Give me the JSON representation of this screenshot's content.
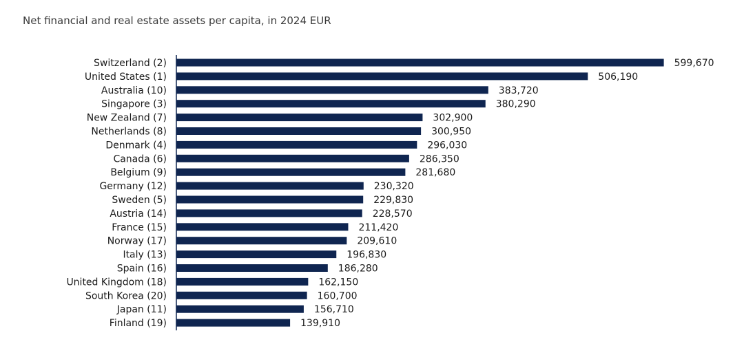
{
  "subtitle": "Net financial and real estate assets per capita, in 2024 EUR",
  "colors": {
    "bar": "#0f2550",
    "axis": "#0f2550",
    "text": "#1a1a1a"
  },
  "chart_data": {
    "type": "bar",
    "orientation": "horizontal",
    "title": "",
    "subtitle": "Net financial and real estate assets per capita, in 2024 EUR",
    "xlabel": "",
    "ylabel": "",
    "xlim": [
      0,
      600000
    ],
    "grid": false,
    "legend": "none",
    "categories": [
      "Switzerland (2)",
      "United States (1)",
      "Australia (10)",
      "Singapore (3)",
      "New Zealand (7)",
      "Netherlands (8)",
      "Denmark (4)",
      "Canada (6)",
      "Belgium (9)",
      "Germany (12)",
      "Sweden (5)",
      "Austria (14)",
      "France (15)",
      "Norway (17)",
      "Italy (13)",
      "Spain (16)",
      "United Kingdom (18)",
      "South Korea (20)",
      "Japan (11)",
      "Finland (19)"
    ],
    "values": [
      599670,
      506190,
      383720,
      380290,
      302900,
      300950,
      296030,
      286350,
      281680,
      230320,
      229830,
      228570,
      211420,
      209610,
      196830,
      186280,
      162150,
      160700,
      156710,
      139910
    ],
    "value_labels": [
      "599,670",
      "506,190",
      "383,720",
      "380,290",
      "302,900",
      "300,950",
      "296,030",
      "286,350",
      "281,680",
      "230,320",
      "229,830",
      "228,570",
      "211,420",
      "209,610",
      "196,830",
      "186,280",
      "162,150",
      "160,700",
      "156,710",
      "139,910"
    ]
  }
}
